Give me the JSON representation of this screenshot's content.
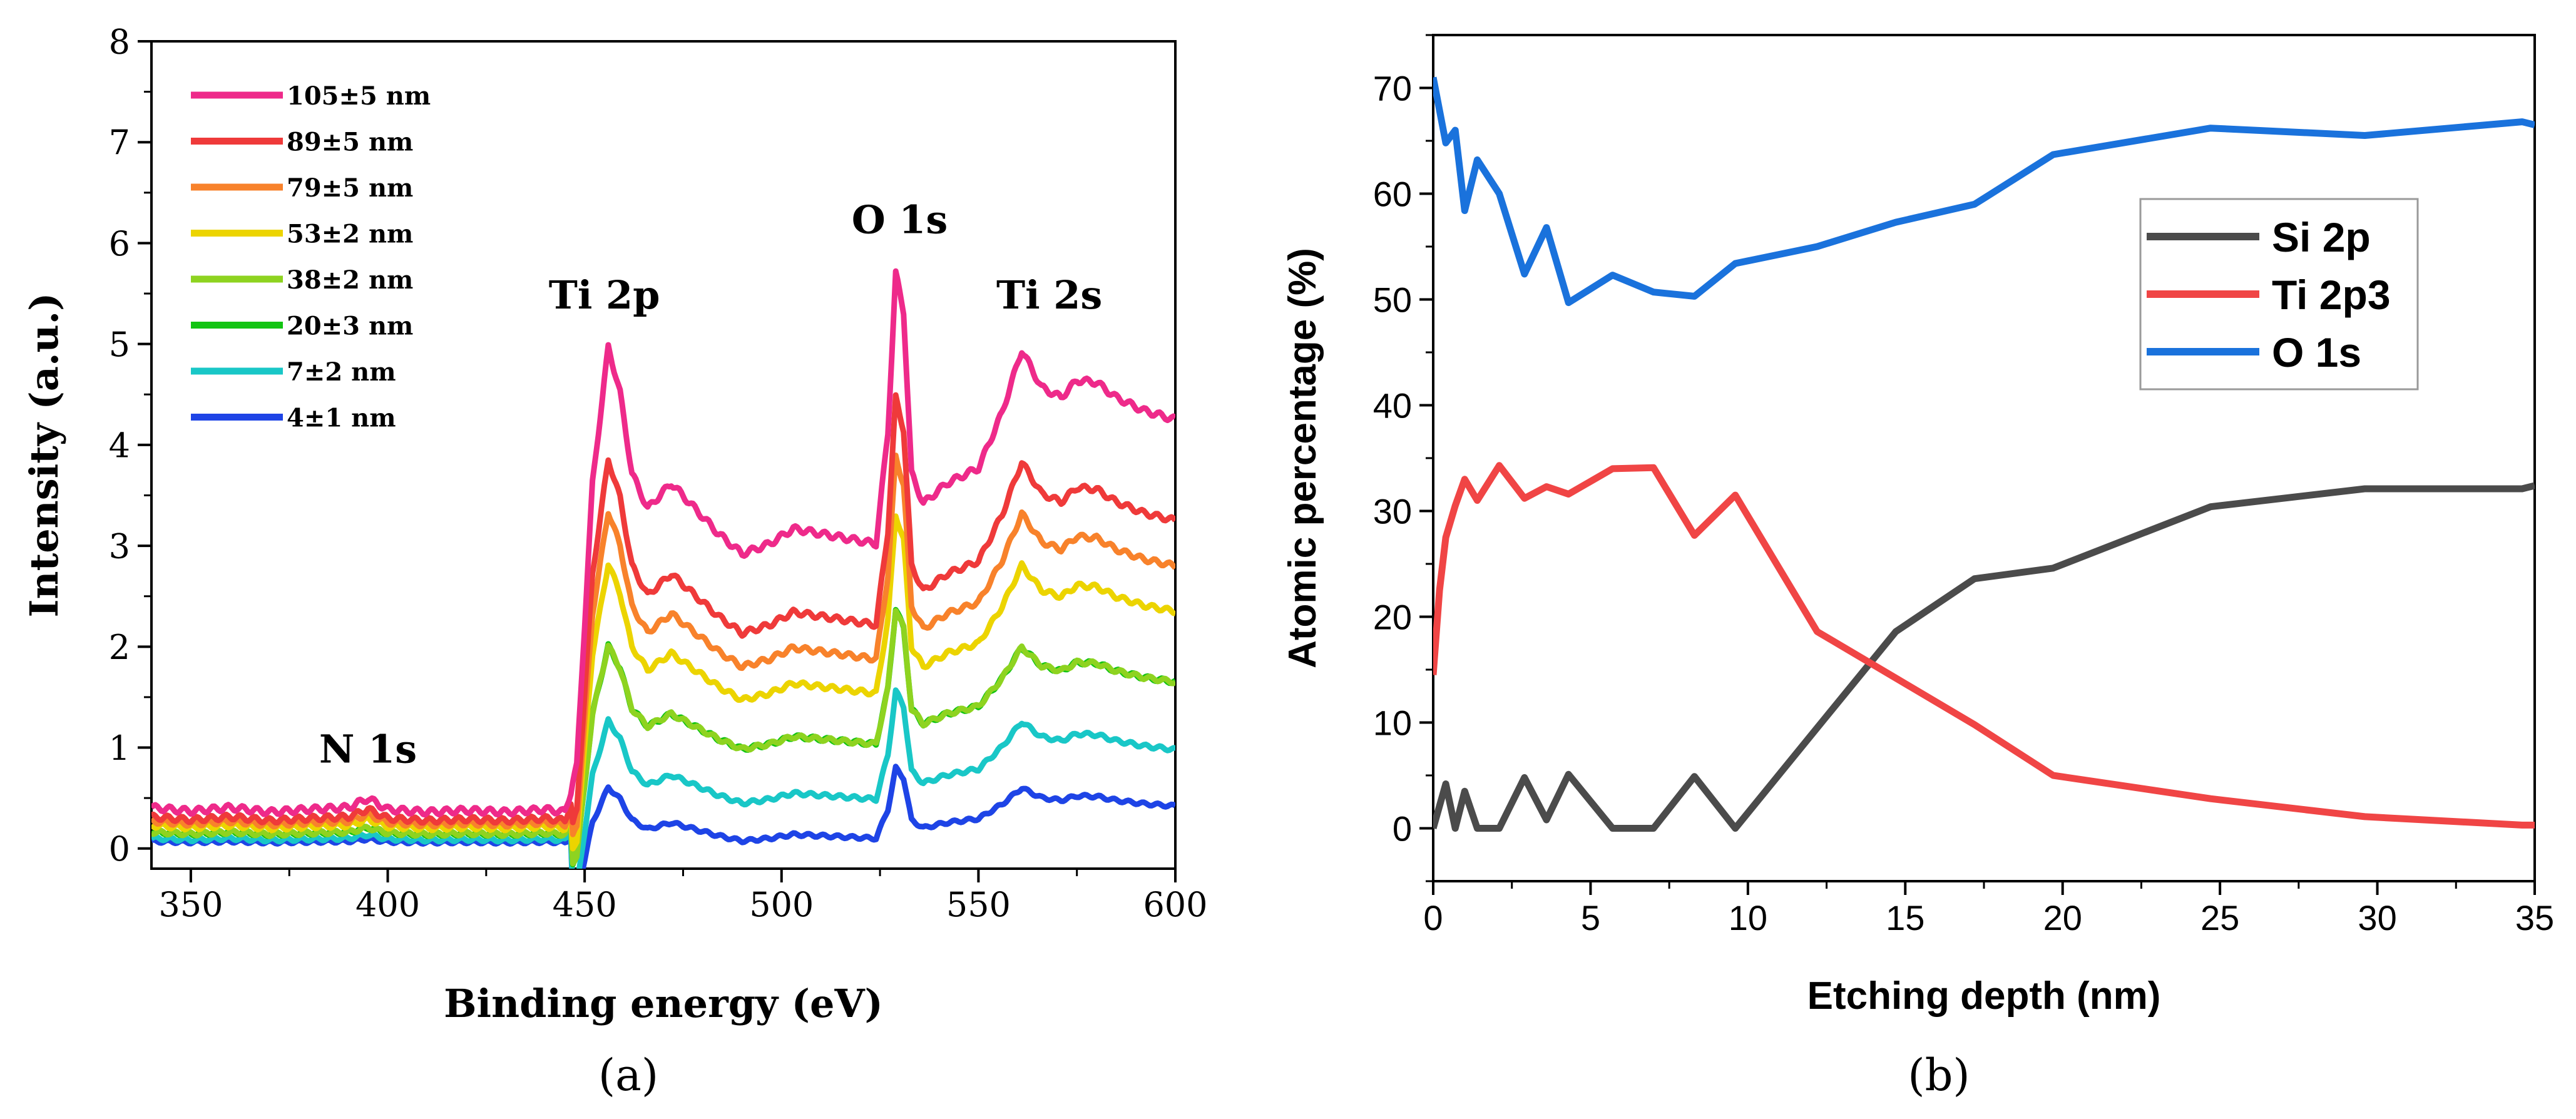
{
  "figure": {
    "panel_a_caption": "(a)",
    "panel_b_caption": "(b)"
  },
  "chart_data": [
    {
      "type": "line",
      "panel": "a",
      "title": "",
      "xlabel": "Binding energy (eV)",
      "ylabel": "Intensity (a.u.)",
      "xlim": [
        340,
        600
      ],
      "ylim": [
        -0.2,
        8
      ],
      "xticks": [
        350,
        400,
        450,
        500,
        550,
        600
      ],
      "yticks": [
        0,
        1,
        2,
        3,
        4,
        5,
        6,
        7,
        8
      ],
      "grid": false,
      "legend_position": "top-left",
      "annotations": [
        {
          "text": "N 1s",
          "x": 395,
          "y": 0.85
        },
        {
          "text": "Ti 2p",
          "x": 455,
          "y": 5.35
        },
        {
          "text": "O 1s",
          "x": 530,
          "y": 6.1
        },
        {
          "text": "Ti 2s",
          "x": 568,
          "y": 5.35
        }
      ],
      "series": [
        {
          "name": "105±5 nm",
          "color": "#ee2a8a",
          "offset": 4.25,
          "scale": 1.0
        },
        {
          "name": "89±5 nm",
          "color": "#ef3a3a",
          "offset": 3.25,
          "scale": 0.84
        },
        {
          "name": "79±5 nm",
          "color": "#f8822b",
          "offset": 2.8,
          "scale": 0.75
        },
        {
          "name": "53±2 nm",
          "color": "#ecd400",
          "offset": 2.35,
          "scale": 0.66
        },
        {
          "name": "38±2 nm",
          "color": "#8ed320",
          "offset": 1.65,
          "scale": 0.5
        },
        {
          "name": "20±3 nm",
          "color": "#12c412",
          "offset": 1.65,
          "scale": 0.5
        },
        {
          "name": "7±2 nm",
          "color": "#19c7c7",
          "offset": 0.98,
          "scale": 0.4
        },
        {
          "name": "4±1 nm",
          "color": "#1e44e6",
          "offset": 0.42,
          "scale": 0.26
        }
      ],
      "base_shape": [
        [
          340,
          0.5
        ],
        [
          350,
          0.46
        ],
        [
          360,
          0.5
        ],
        [
          370,
          0.45
        ],
        [
          380,
          0.48
        ],
        [
          390,
          0.5
        ],
        [
          395,
          0.6
        ],
        [
          400,
          0.48
        ],
        [
          410,
          0.45
        ],
        [
          420,
          0.47
        ],
        [
          430,
          0.45
        ],
        [
          440,
          0.48
        ],
        [
          445,
          0.45
        ],
        [
          448,
          0.9
        ],
        [
          452,
          3.7
        ],
        [
          456,
          5.05
        ],
        [
          459,
          4.6
        ],
        [
          462,
          3.8
        ],
        [
          466,
          3.45
        ],
        [
          472,
          3.7
        ],
        [
          478,
          3.45
        ],
        [
          484,
          3.2
        ],
        [
          490,
          3.0
        ],
        [
          497,
          3.1
        ],
        [
          503,
          3.25
        ],
        [
          510,
          3.2
        ],
        [
          517,
          3.15
        ],
        [
          524,
          3.1
        ],
        [
          527,
          4.2
        ],
        [
          529,
          5.78
        ],
        [
          531,
          5.4
        ],
        [
          533,
          3.8
        ],
        [
          536,
          3.5
        ],
        [
          542,
          3.7
        ],
        [
          550,
          3.85
        ],
        [
          556,
          4.4
        ],
        [
          561,
          5.02
        ],
        [
          566,
          4.65
        ],
        [
          571,
          4.55
        ],
        [
          575,
          4.72
        ],
        [
          580,
          4.7
        ],
        [
          585,
          4.55
        ],
        [
          592,
          4.42
        ],
        [
          600,
          4.33
        ]
      ]
    },
    {
      "type": "line",
      "panel": "b",
      "title": "",
      "xlabel": "Etching depth (nm)",
      "ylabel": "Atomic percentage (%)",
      "xlim": [
        0,
        35
      ],
      "ylim": [
        -5,
        75
      ],
      "xticks": [
        0,
        5,
        10,
        15,
        20,
        25,
        30,
        35
      ],
      "yticks": [
        0,
        10,
        20,
        30,
        40,
        50,
        60,
        70
      ],
      "grid": false,
      "legend_position": "center-right",
      "series": [
        {
          "name": "Si 2p",
          "color": "#4b4b4b",
          "x": [
            0,
            0.4,
            0.7,
            1.0,
            1.4,
            2.1,
            2.9,
            3.6,
            4.3,
            5.7,
            7.0,
            8.3,
            9.6,
            12.2,
            14.7,
            17.2,
            19.7,
            24.7,
            29.6,
            34.6,
            35
          ],
          "y": [
            0,
            4.2,
            0,
            3.5,
            0,
            0,
            4.8,
            0.8,
            5.1,
            0,
            0,
            4.9,
            0,
            9.5,
            18.6,
            23.6,
            24.6,
            30.4,
            32.1,
            32.1,
            32.4
          ]
        },
        {
          "name": "Ti 2p3",
          "color": "#f04545",
          "x": [
            0,
            0.2,
            0.4,
            0.7,
            1.0,
            1.4,
            2.1,
            2.9,
            3.6,
            4.3,
            5.7,
            7.0,
            8.3,
            9.6,
            12.2,
            14.7,
            17.2,
            19.7,
            24.7,
            29.6,
            34.6,
            35
          ],
          "y": [
            14.5,
            22.5,
            27.5,
            30.5,
            33.0,
            31.0,
            34.3,
            31.2,
            32.3,
            31.6,
            34.0,
            34.1,
            27.7,
            31.5,
            18.6,
            14.2,
            9.8,
            5.0,
            2.8,
            1.1,
            0.3,
            0.3
          ]
        },
        {
          "name": "O 1s",
          "color": "#1a72dc",
          "x": [
            0,
            0.4,
            0.7,
            1.0,
            1.4,
            2.1,
            2.9,
            3.6,
            4.3,
            5.7,
            7.0,
            8.3,
            9.6,
            12.2,
            14.7,
            17.2,
            19.7,
            24.7,
            29.6,
            34.6,
            35
          ],
          "y": [
            71.0,
            64.8,
            66.0,
            58.4,
            63.2,
            60.0,
            52.4,
            56.8,
            49.7,
            52.3,
            50.7,
            50.3,
            53.4,
            55.0,
            57.3,
            59.0,
            63.7,
            66.2,
            65.5,
            66.8,
            66.5
          ]
        }
      ]
    }
  ]
}
